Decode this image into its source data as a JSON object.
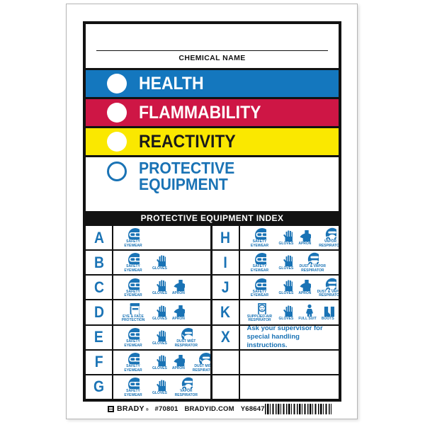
{
  "label": {
    "chemical_name_label": "CHEMICAL NAME",
    "colors": {
      "bar_blue": "#1477be",
      "bar_red": "#ce1645",
      "bar_yellow": "#fae800",
      "icon_blue": "#1a73b5",
      "black": "#121212"
    },
    "bars": [
      {
        "id": "health",
        "label": "HEALTH",
        "bg": "#1477be",
        "text_color": "#ffffff",
        "circle": "filled-white"
      },
      {
        "id": "flammability",
        "label": "FLAMMABILITY",
        "bg": "#ce1645",
        "text_color": "#ffffff",
        "circle": "filled-white"
      },
      {
        "id": "reactivity",
        "label": "REACTIVITY",
        "bg": "#fae800",
        "text_color": "#1a1a1a",
        "circle": "filled-white"
      },
      {
        "id": "protective-equipment",
        "label": "PROTECTIVE EQUIPMENT",
        "bg": "#ffffff",
        "text_color": "#1a73b5",
        "circle": "outline-blue"
      }
    ],
    "index_header": "PROTECTIVE EQUIPMENT INDEX",
    "index_rows_left": [
      {
        "letter": "A",
        "items": [
          {
            "icon": "safety-eyewear",
            "label": "SAFETY EYEWEAR"
          }
        ]
      },
      {
        "letter": "B",
        "items": [
          {
            "icon": "safety-eyewear",
            "label": "SAFETY EYEWEAR"
          },
          {
            "icon": "gloves",
            "label": "GLOVES"
          }
        ]
      },
      {
        "letter": "C",
        "items": [
          {
            "icon": "safety-eyewear",
            "label": "SAFETY EYEWEAR"
          },
          {
            "icon": "gloves",
            "label": "GLOVES"
          },
          {
            "icon": "apron",
            "label": "APRON"
          }
        ]
      },
      {
        "letter": "D",
        "items": [
          {
            "icon": "eye-face-protection",
            "label": "EYE & FACE PROTECTION"
          },
          {
            "icon": "gloves",
            "label": "GLOVES"
          },
          {
            "icon": "apron",
            "label": "APRON"
          }
        ]
      },
      {
        "letter": "E",
        "items": [
          {
            "icon": "safety-eyewear",
            "label": "SAFETY EYEWEAR"
          },
          {
            "icon": "gloves",
            "label": "GLOVES"
          },
          {
            "icon": "dust-mist-respirator",
            "label": "DUST MIST RESPIRATOR"
          }
        ]
      },
      {
        "letter": "F",
        "items": [
          {
            "icon": "safety-eyewear",
            "label": "SAFETY EYEWEAR"
          },
          {
            "icon": "gloves",
            "label": "GLOVES"
          },
          {
            "icon": "apron",
            "label": "APRON"
          },
          {
            "icon": "dust-mist-respirator",
            "label": "DUST MIST RESPIRATOR"
          }
        ]
      },
      {
        "letter": "G",
        "items": [
          {
            "icon": "safety-eyewear",
            "label": "SAFETY EYEWEAR"
          },
          {
            "icon": "gloves",
            "label": "GLOVES"
          },
          {
            "icon": "vapor-respirator",
            "label": "VAPOR RESPIRATOR"
          }
        ]
      }
    ],
    "index_rows_right": [
      {
        "letter": "H",
        "items": [
          {
            "icon": "safety-eyewear",
            "label": "SAFETY EYEWEAR"
          },
          {
            "icon": "gloves",
            "label": "GLOVES"
          },
          {
            "icon": "apron",
            "label": "APRON"
          },
          {
            "icon": "vapor-respirator",
            "label": "VAPOR RESPIRATOR"
          }
        ]
      },
      {
        "letter": "I",
        "items": [
          {
            "icon": "safety-eyewear",
            "label": "SAFETY EYEWEAR"
          },
          {
            "icon": "gloves",
            "label": "GLOVES"
          },
          {
            "icon": "dust-vapor-respirator",
            "label": "DUST & VAPOR RESPIRATOR"
          }
        ]
      },
      {
        "letter": "J",
        "items": [
          {
            "icon": "safety-eyewear",
            "label": "SAFETY EYEWEAR"
          },
          {
            "icon": "gloves",
            "label": "GLOVES"
          },
          {
            "icon": "apron",
            "label": "APRON"
          },
          {
            "icon": "dust-vapor-respirator",
            "label": "DUST & VAPOR RESPIRATOR"
          }
        ]
      },
      {
        "letter": "K",
        "items": [
          {
            "icon": "supplied-air-respirator",
            "label": "SUPPLIED-AIR RESPIRATOR"
          },
          {
            "icon": "gloves",
            "label": "GLOVES"
          },
          {
            "icon": "full-suit",
            "label": "FULL SUIT"
          },
          {
            "icon": "boots",
            "label": "BOOTS"
          }
        ]
      },
      {
        "letter": "X",
        "text": "Ask your supervisor for\nspecial handling instructions."
      },
      {
        "letter": "",
        "items": []
      },
      {
        "letter": "",
        "items": []
      }
    ],
    "footer": {
      "brand": "BRADY",
      "reg": "®",
      "part_number": "#70801",
      "website": "BRADYID.COM",
      "item_code": "Y68647"
    }
  }
}
